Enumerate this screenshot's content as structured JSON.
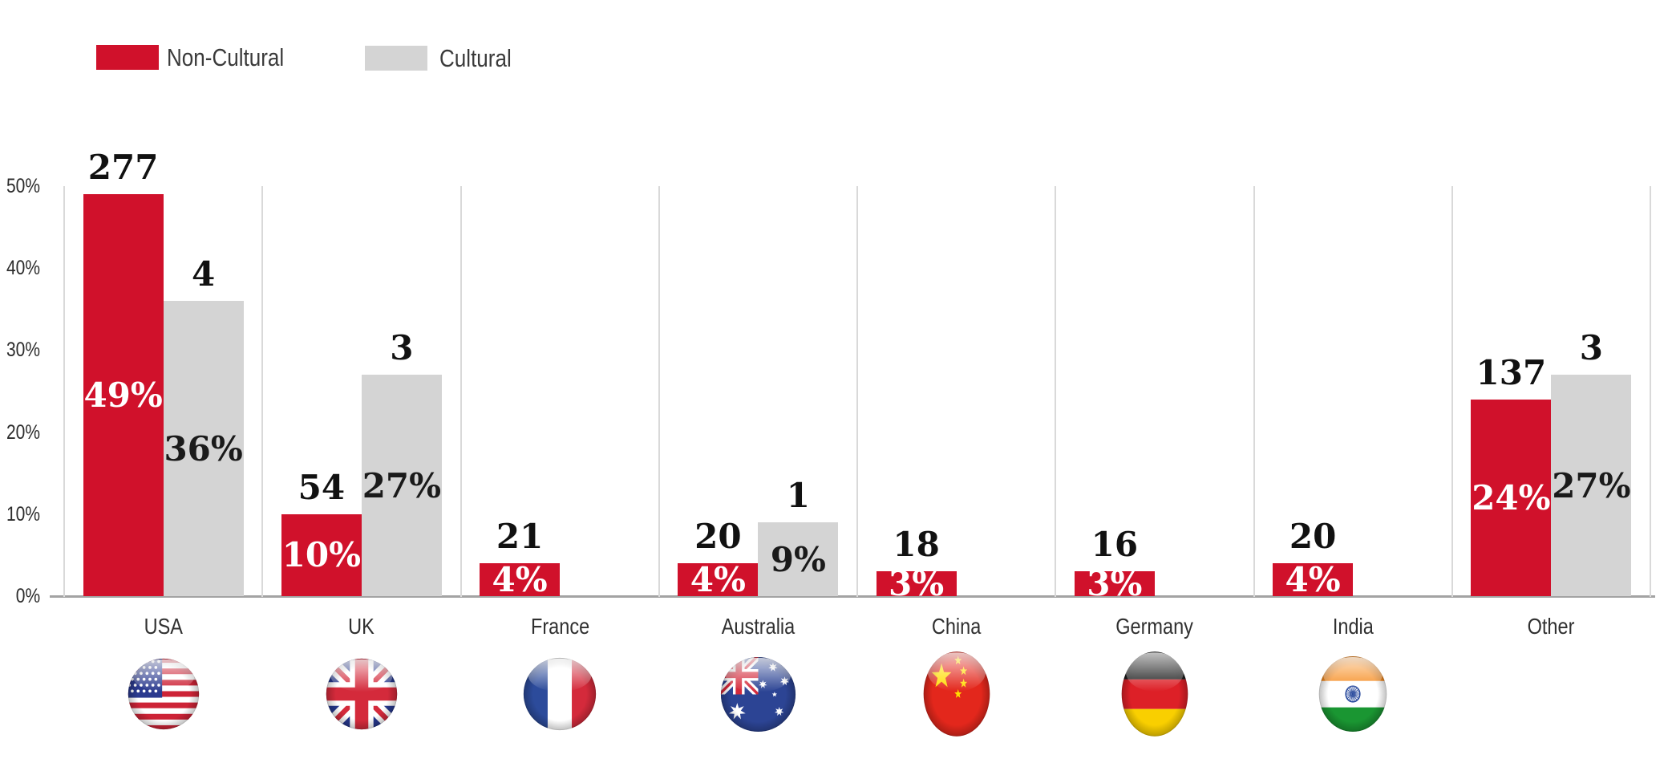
{
  "page": {
    "background": "#ffffff"
  },
  "legend": {
    "items": [
      {
        "label": "Non-Cultural",
        "color": "#d0112b"
      },
      {
        "label": "Cultural",
        "color": "#d4d4d4"
      }
    ]
  },
  "chart_data": {
    "type": "bar",
    "title": "",
    "categories": [
      "USA",
      "UK",
      "France",
      "Australia",
      "China",
      "Germany",
      "India",
      "Other"
    ],
    "series": [
      {
        "name": "Non-Cultural",
        "color": "#d0112b",
        "counts": [
          277,
          54,
          21,
          20,
          18,
          16,
          20,
          137
        ],
        "percents": [
          49,
          10,
          4,
          4,
          3,
          3,
          4,
          24
        ],
        "label_color": "#ffffff"
      },
      {
        "name": "Cultural",
        "color": "#d4d4d4",
        "counts": [
          4,
          3,
          null,
          1,
          null,
          null,
          null,
          3
        ],
        "percents": [
          36,
          27,
          null,
          9,
          null,
          null,
          null,
          27
        ],
        "label_color": "#1a1a1a"
      }
    ],
    "y_axis": {
      "ticks": [
        "0%",
        "10%",
        "20%",
        "30%",
        "40%",
        "50%"
      ],
      "min": 0,
      "max": 50,
      "unit": "%"
    },
    "xlabel": "",
    "ylabel": "",
    "grid": "vertical-panel-separators",
    "legend_position": "top-left",
    "flags": [
      "usa",
      "uk",
      "france",
      "australia",
      "china",
      "germany",
      "india",
      null
    ]
  }
}
